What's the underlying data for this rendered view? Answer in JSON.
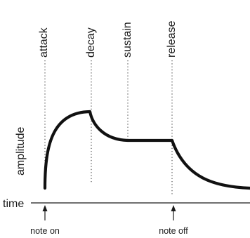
{
  "phases": {
    "attack": "attack",
    "decay": "decay",
    "sustain": "sustain",
    "release": "release"
  },
  "axes": {
    "amplitude": "amplitude",
    "time": "time"
  },
  "events": {
    "note_on": "note on",
    "note_off": "note off"
  }
}
